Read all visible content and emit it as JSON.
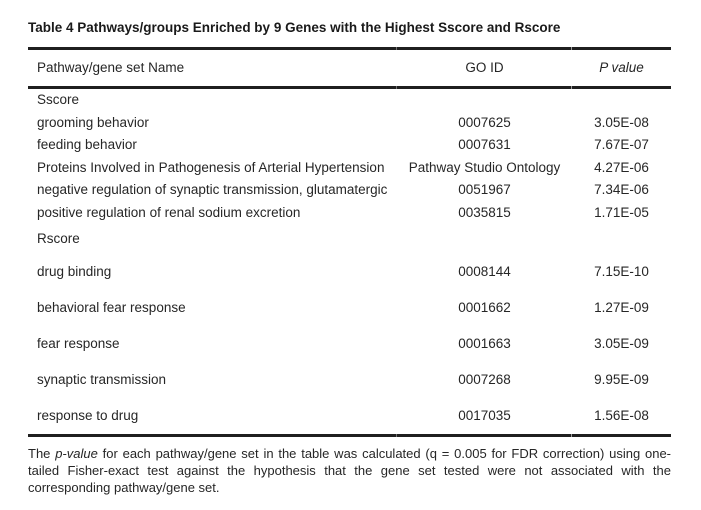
{
  "page": {
    "title": "Table 4 Pathways/groups Enriched by 9 Genes with the Highest Sscore and Rscore"
  },
  "colors": {
    "background": "#ffffff",
    "text": "#262626",
    "rule": "#1f1f1f"
  },
  "table": {
    "columns": {
      "name": "Pathway/gene set Name",
      "go_id": "GO ID",
      "p_value": "P value"
    },
    "rows": [
      {
        "name": "Sscore",
        "go_id": "",
        "p_value": ""
      },
      {
        "name": "grooming behavior",
        "go_id": "0007625",
        "p_value": "3.05E-08"
      },
      {
        "name": "feeding behavior",
        "go_id": "0007631",
        "p_value": "7.67E-07"
      },
      {
        "name": "Proteins Involved in Pathogenesis of Arterial Hypertension",
        "go_id": "Pathway Studio Ontology",
        "p_value": "4.27E-06"
      },
      {
        "name": "negative regulation of synaptic transmission, glutamatergic",
        "go_id": "0051967",
        "p_value": "7.34E-06"
      },
      {
        "name": "positive regulation of renal sodium excretion",
        "go_id": "0035815",
        "p_value": "1.71E-05"
      },
      {
        "name": "Rscore",
        "go_id": "",
        "p_value": ""
      },
      {
        "name": "drug binding",
        "go_id": "0008144",
        "p_value": "7.15E-10"
      },
      {
        "name": "behavioral fear response",
        "go_id": "0001662",
        "p_value": "1.27E-09"
      },
      {
        "name": "fear response",
        "go_id": "0001663",
        "p_value": "3.05E-09"
      },
      {
        "name": "synaptic transmission",
        "go_id": "0007268",
        "p_value": "9.95E-09"
      },
      {
        "name": "response to drug",
        "go_id": "0017035",
        "p_value": "1.56E-08"
      }
    ]
  },
  "footnote": {
    "part1": "The ",
    "italic": "p-value",
    "part2": " for each pathway/gene set in the table was calculated (q = 0.005 for FDR correction) using one-tailed Fisher-exact test against the hypothesis that the gene set tested were not associated with the corresponding pathway/gene set."
  }
}
